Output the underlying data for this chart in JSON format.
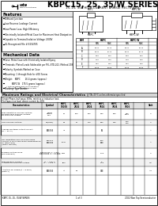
{
  "title": "KBPC15, 25, 35/W SERIES",
  "subtitle": "15, 25, 35A HIGH CURRENT BRIDGE RECTIFIERS",
  "bg_color": "#ffffff",
  "features_title": "Features",
  "features": [
    "Diffused Junction",
    "Low Reverse Leakage Current",
    "Low Power Loss, High Efficiency",
    "Electrically Isolated Metal Case for Maximum Heat Dissipation",
    "Capable to Terminal Isolation Voltage 2500V",
    "UL Recognized File # E154705"
  ],
  "mech_title": "Mechanical Data",
  "mech_items": [
    "Case: Metal Case with Electrically Isolated Epoxy",
    "Terminals: Plated Leads Solderable per MIL-STD-202, Method 208",
    "Polarity: Symbols Marked on Case",
    "Mounting: 1 through Hole for #10 Screw",
    "Weight:   KBPC       26.4 grams (approx.)",
    "          KBPC-W   175.5 grams (approx.)",
    "Marking: Type Number"
  ],
  "mech_note": "     * Outline Dimension in Millimeters\n       ( ) Outline Dimension in Inches",
  "table_title": "Maximum Ratings and Electrical Characteristics",
  "table_cond": "@ TA=25°C unless otherwise specified",
  "table_note1": "Single Phase, half wave, 60Hz, resistive or inductive load.",
  "table_note2": "For capacitive load, derate current by 20%",
  "col_headers": [
    "Characteristics",
    "Symbol",
    "KBPC\n15005",
    "KBPC\n2502",
    "KBPC\n2504",
    "KBPC\n3502",
    "KBPC\n3504",
    "KBPC\n3506",
    "Unit"
  ],
  "footer_left": "KBPC 15, 25, 35/W SERIES",
  "footer_mid": "1 of 3",
  "footer_right": "2002 Won Top Semiconductor"
}
